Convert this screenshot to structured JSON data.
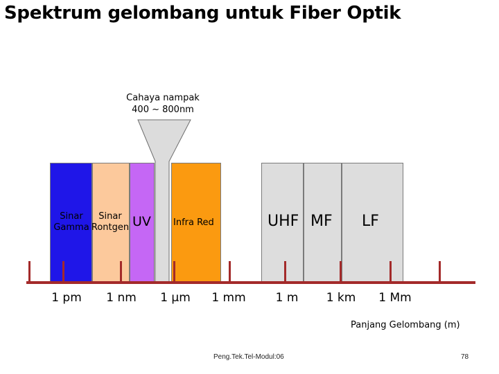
{
  "title": "Spektrum gelombang untuk Fiber Optik",
  "visible_light": {
    "line1": "Cahaya nampak",
    "line2": "400 ~ 800nm"
  },
  "bands": {
    "gamma": {
      "line1": "Sinar",
      "line2": "Gamma",
      "color": "#1f16e8"
    },
    "xray": {
      "line1": "Sinar",
      "line2": "Rontgen",
      "color": "#fcc99c"
    },
    "uv": {
      "label": "UV",
      "color": "#c567f5"
    },
    "visible": {
      "color": "#dcdcdc"
    },
    "infrared": {
      "label": "Infra Red",
      "color": "#fb9a10"
    },
    "uhf": {
      "label": "UHF",
      "color": "#dddddd"
    },
    "mf": {
      "label": "MF",
      "color": "#dddddd"
    },
    "lf": {
      "label": "LF",
      "color": "#dddddd"
    }
  },
  "scale_labels": [
    "1 pm",
    "1 nm",
    "1 µm",
    "1 mm",
    "1 m",
    "1 km",
    "1 Mm"
  ],
  "axis_label": "Panjang Gelombang (m)",
  "footer": "Peng.Tek.Tel-Modul:06",
  "page_number": "78",
  "colors": {
    "axis": "#a32a2a"
  }
}
